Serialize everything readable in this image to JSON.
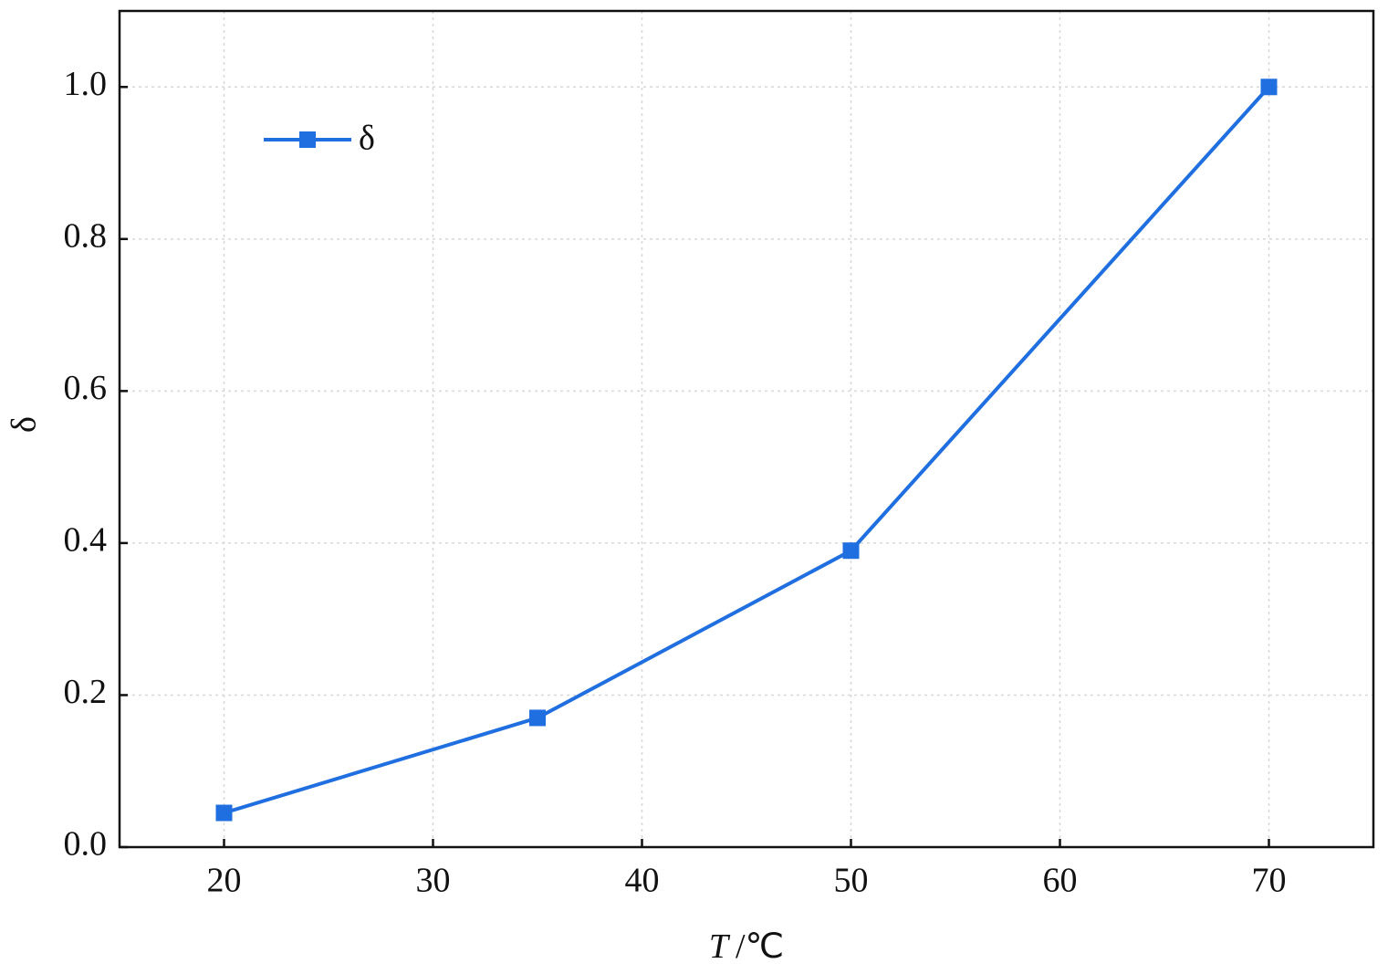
{
  "chart_data": {
    "type": "line",
    "x_label_var": "T",
    "x_label_unit": "/℃",
    "y_label": "δ",
    "x": [
      20,
      35,
      50,
      70
    ],
    "series": [
      {
        "name": "δ",
        "color": "#1f6fe0",
        "values": [
          0.045,
          0.17,
          0.39,
          1.0
        ]
      }
    ],
    "xlim": [
      15,
      75
    ],
    "xticks": [
      20,
      30,
      40,
      50,
      60,
      70
    ],
    "ylim": [
      0,
      1.1
    ],
    "yticks": [
      {
        "value": 0,
        "label": "0.0"
      },
      0.2,
      0.4,
      0.6,
      0.8,
      {
        "value": 1,
        "label": "1.0"
      }
    ],
    "grid": true,
    "legend": "upper left",
    "marker": "square"
  }
}
